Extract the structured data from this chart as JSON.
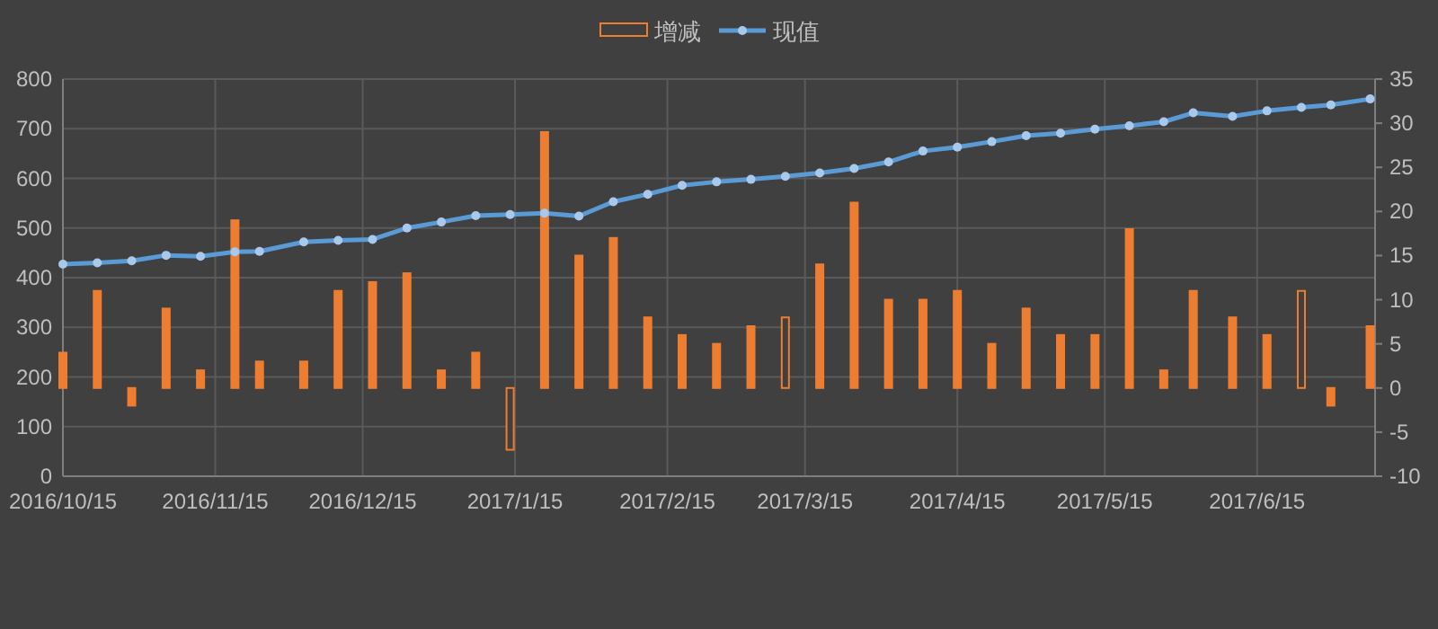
{
  "chart_data": {
    "type": "bar",
    "grid": true,
    "legend": "top",
    "marker": "circle",
    "line_style": "solid",
    "x": [
      "2016-10-15",
      "2016-10-22",
      "2016-10-29",
      "2016-11-05",
      "2016-11-12",
      "2016-11-19",
      "2016-11-24",
      "2016-12-03",
      "2016-12-10",
      "2016-12-17",
      "2016-12-24",
      "2016-12-31",
      "2017-01-07",
      "2017-01-14",
      "2017-01-21",
      "2017-01-28",
      "2017-02-04",
      "2017-02-11",
      "2017-02-18",
      "2017-02-25",
      "2017-03-04",
      "2017-03-11",
      "2017-03-18",
      "2017-03-25",
      "2017-04-01",
      "2017-04-08",
      "2017-04-15",
      "2017-04-22",
      "2017-04-29",
      "2017-05-06",
      "2017-05-13",
      "2017-05-20",
      "2017-05-27",
      "2017-06-02",
      "2017-06-10",
      "2017-06-17",
      "2017-06-24",
      "2017-06-30",
      "2017-07-08"
    ],
    "xlim": [
      "2016-10-15",
      "2017-07-09"
    ],
    "xticks": [
      {
        "value": "2016-10-15",
        "label": "2016/10/15"
      },
      {
        "value": "2016-11-15",
        "label": "2016/11/15"
      },
      {
        "value": "2016-12-15",
        "label": "2016/12/15"
      },
      {
        "value": "2017-01-15",
        "label": "2017/1/15"
      },
      {
        "value": "2017-02-15",
        "label": "2017/2/15"
      },
      {
        "value": "2017-03-15",
        "label": "2017/3/15"
      },
      {
        "value": "2017-04-15",
        "label": "2017/4/15"
      },
      {
        "value": "2017-05-15",
        "label": "2017/5/15"
      },
      {
        "value": "2017-06-15",
        "label": "2017/6/15"
      }
    ],
    "ylim": [
      0,
      800
    ],
    "yticks": [
      0,
      100,
      200,
      300,
      400,
      500,
      600,
      700,
      800
    ],
    "y2lim": [
      -10,
      35
    ],
    "y2ticks": [
      -10,
      -5,
      0,
      5,
      10,
      15,
      20,
      25,
      30,
      35
    ],
    "series": [
      {
        "name": "增减",
        "axis": "y2",
        "color": "#ed7d31",
        "colors": [
          "#ed7d31",
          "#ed7d31",
          "#ed7d31",
          "#ed7d31",
          "#ed7d31",
          "#ed7d31",
          "#ed7d31",
          "#ed7d31",
          "#ed7d31",
          "#ed7d31",
          "#ed7d31",
          "#ed7d31",
          "#ed7d31",
          "#404040",
          "#ed7d31",
          "#ed7d31",
          "#ed7d31",
          "#ed7d31",
          "#ed7d31",
          "#ed7d31",
          "#ed7d31",
          "#404040",
          "#ed7d31",
          "#ed7d31",
          "#ed7d31",
          "#ed7d31",
          "#ed7d31",
          "#ed7d31",
          "#ed7d31",
          "#ed7d31",
          "#ed7d31",
          "#ed7d31",
          "#ed7d31",
          "#ed7d31",
          "#ed7d31",
          "#ed7d31",
          "#404040",
          "#ed7d31",
          "#ed7d31"
        ],
        "values": [
          4,
          11,
          -2,
          9,
          2,
          19,
          3,
          3,
          11,
          12,
          13,
          2,
          4,
          -7,
          29,
          15,
          17,
          8,
          6,
          5,
          7,
          8,
          14,
          21,
          10,
          10,
          11,
          5,
          9,
          6,
          6,
          18,
          2,
          11,
          8,
          6,
          11,
          -2,
          7
        ]
      },
      {
        "name": "现值",
        "type": "line",
        "color": "#5b9bd5",
        "values": [
          427,
          430,
          434,
          445,
          443,
          452,
          453,
          472,
          475,
          477,
          500,
          512,
          525,
          527,
          530,
          524,
          553,
          568,
          586,
          593,
          598,
          604,
          611,
          620,
          633,
          655,
          663,
          674,
          686,
          691,
          699,
          706,
          714,
          732,
          725,
          736,
          743,
          748,
          760
        ]
      }
    ]
  }
}
